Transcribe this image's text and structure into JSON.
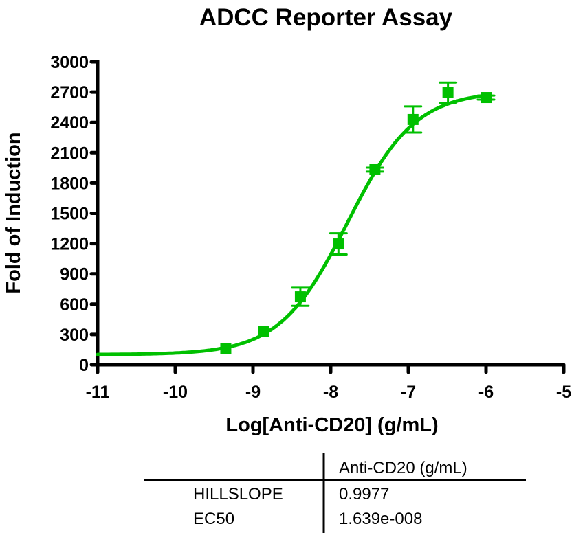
{
  "chart_data": {
    "type": "scatter",
    "title": "ADCC Reporter Assay",
    "xlabel": "Log[Anti-CD20] (g/mL)",
    "ylabel": "Fold of Induction",
    "xlim": [
      -11,
      -5
    ],
    "ylim": [
      0,
      3000
    ],
    "x_ticks": [
      -11,
      -10,
      -9,
      -8,
      -7,
      -6,
      -5
    ],
    "y_ticks": [
      0,
      300,
      600,
      900,
      1200,
      1500,
      1800,
      2100,
      2400,
      2700,
      3000
    ],
    "grid": false,
    "legend": null,
    "color": "#00C000",
    "series": [
      {
        "name": "Anti-CD20 (g/mL)",
        "x": [
          -9.35,
          -8.86,
          -8.39,
          -7.9,
          -7.43,
          -6.94,
          -6.49,
          -6.0
        ],
        "y": [
          163,
          327,
          673,
          1197,
          1932,
          2429,
          2694,
          2646
        ],
        "error": [
          10,
          15,
          90,
          105,
          20,
          130,
          100,
          20
        ],
        "fit": {
          "model": "sigmoidal dose-response (variable slope)",
          "bottom": 100,
          "top": 2710,
          "logEC50": -7.785,
          "hillslope": 0.9977,
          "x_range": [
            -11,
            -6
          ]
        }
      }
    ],
    "results_table": {
      "column_header": "Anti-CD20 (g/mL)",
      "rows": [
        {
          "label": "HILLSLOPE",
          "value": "0.9977"
        },
        {
          "label": "EC50",
          "value": "1.639e-008"
        }
      ]
    }
  }
}
